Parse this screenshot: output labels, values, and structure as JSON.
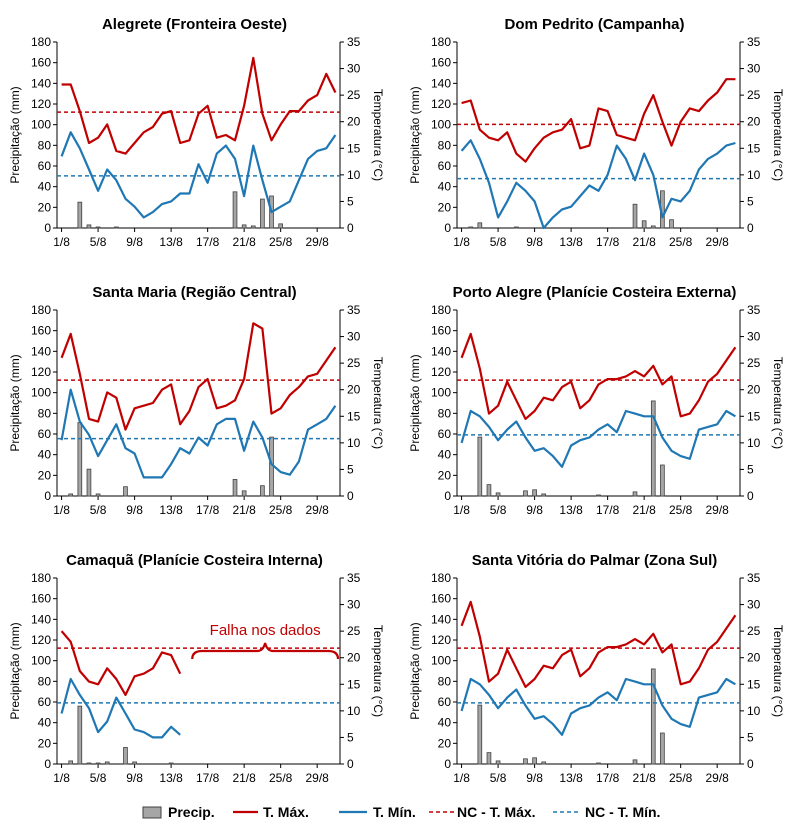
{
  "colors": {
    "precip_fill": "#a6a6a6",
    "precip_stroke": "#404040",
    "tmax": "#c00000",
    "tmin": "#1f77b4",
    "axis": "#000000"
  },
  "legend": {
    "precip": "Precip.",
    "tmax": "T. Máx.",
    "tmin": "T. Mín.",
    "nc_tmax": "NC - T. Máx.",
    "nc_tmin": "NC - T. Mín."
  },
  "chart_data": [
    {
      "type": "bar+line",
      "title": "Alegrete (Fronteira Oeste)",
      "ylabel": "Precipitação (mm)",
      "y2label": "Temperatura (°C)",
      "ylim": [
        0,
        180
      ],
      "y2lim": [
        0,
        35
      ],
      "yticks": [
        0,
        20,
        40,
        60,
        80,
        100,
        120,
        140,
        160,
        180
      ],
      "y2ticks": [
        0,
        5,
        10,
        15,
        20,
        25,
        30,
        35
      ],
      "x": [
        1,
        2,
        3,
        4,
        5,
        6,
        7,
        8,
        9,
        10,
        11,
        12,
        13,
        14,
        15,
        16,
        17,
        18,
        19,
        20,
        21,
        22,
        23,
        24,
        25,
        26,
        27,
        28,
        29,
        30,
        31
      ],
      "xticklabels": [
        "1/8",
        "5/8",
        "9/8",
        "13/8",
        "17/8",
        "21/8",
        "25/8",
        "29/8"
      ],
      "precip": [
        0,
        0,
        25,
        3,
        1,
        0,
        1,
        0,
        0,
        0,
        0,
        0,
        0,
        0,
        0,
        0,
        0,
        0,
        0,
        35,
        3,
        2,
        28,
        31,
        4,
        0,
        0,
        0,
        0,
        0,
        0
      ],
      "tmax": [
        27,
        27,
        22,
        16,
        17,
        19.5,
        14.5,
        14,
        16,
        18,
        19,
        21.5,
        22,
        16,
        16.5,
        21.5,
        23,
        17,
        17.5,
        16.5,
        23,
        32,
        21.5,
        16.5,
        19.5,
        22,
        22,
        24,
        25,
        29,
        25.5
      ],
      "tmin": [
        13.5,
        18,
        15,
        11,
        7,
        11,
        9,
        5.5,
        4,
        2,
        3,
        4.5,
        5,
        6.5,
        6.5,
        12,
        8.5,
        14,
        15.5,
        13,
        6,
        15.5,
        9,
        3,
        4,
        5,
        9,
        13,
        14.5,
        15,
        17.5
      ],
      "nc_tmax": 21.8,
      "nc_tmin": 9.8,
      "annotation": ""
    },
    {
      "type": "bar+line",
      "title": "Dom Pedrito (Campanha)",
      "ylabel": "Precipitação (mm)",
      "y2label": "Temperatura (°C)",
      "ylim": [
        0,
        180
      ],
      "y2lim": [
        0,
        35
      ],
      "yticks": [
        0,
        20,
        40,
        60,
        80,
        100,
        120,
        140,
        160,
        180
      ],
      "y2ticks": [
        0,
        5,
        10,
        15,
        20,
        25,
        30,
        35
      ],
      "x": [
        1,
        2,
        3,
        4,
        5,
        6,
        7,
        8,
        9,
        10,
        11,
        12,
        13,
        14,
        15,
        16,
        17,
        18,
        19,
        20,
        21,
        22,
        23,
        24,
        25,
        26,
        27,
        28,
        29,
        30,
        31
      ],
      "xticklabels": [
        "1/8",
        "5/8",
        "9/8",
        "13/8",
        "17/8",
        "21/8",
        "25/8",
        "29/8"
      ],
      "precip": [
        0,
        1,
        5,
        0,
        0,
        0,
        1,
        0,
        0,
        0,
        0,
        0,
        0,
        0,
        0,
        0,
        0,
        0,
        0,
        23,
        7,
        2,
        36,
        8,
        0,
        0,
        0,
        0,
        0,
        0,
        0
      ],
      "tmax": [
        23.5,
        24,
        18.5,
        17,
        16.5,
        18,
        14,
        12.5,
        15,
        17,
        18,
        18.5,
        20.5,
        15,
        15.5,
        22.5,
        22,
        17.5,
        17,
        16.5,
        21.5,
        25,
        20,
        15.5,
        20,
        22.5,
        22,
        24,
        25.5,
        28,
        28
      ],
      "tmin": [
        14.5,
        16.5,
        13,
        8.5,
        2,
        5,
        8.5,
        7,
        5,
        0,
        2,
        3.5,
        4,
        6,
        8,
        7,
        10,
        15.5,
        13,
        9,
        14,
        10,
        2,
        5.5,
        5,
        7,
        11,
        13,
        14,
        15.5,
        16
      ],
      "nc_tmax": 19.5,
      "nc_tmin": 9.3,
      "annotation": ""
    },
    {
      "type": "bar+line",
      "title": "Santa Maria (Região Central)",
      "ylabel": "Precipitação (mm)",
      "y2label": "Temperatura (°C)",
      "ylim": [
        0,
        180
      ],
      "y2lim": [
        0,
        35
      ],
      "yticks": [
        0,
        20,
        40,
        60,
        80,
        100,
        120,
        140,
        160,
        180
      ],
      "y2ticks": [
        0,
        5,
        10,
        15,
        20,
        25,
        30,
        35
      ],
      "x": [
        1,
        2,
        3,
        4,
        5,
        6,
        7,
        8,
        9,
        10,
        11,
        12,
        13,
        14,
        15,
        16,
        17,
        18,
        19,
        20,
        21,
        22,
        23,
        24,
        25,
        26,
        27,
        28,
        29,
        30,
        31
      ],
      "xticklabels": [
        "1/8",
        "5/8",
        "9/8",
        "13/8",
        "17/8",
        "21/8",
        "25/8",
        "29/8"
      ],
      "precip": [
        0,
        2,
        71,
        26,
        2,
        0,
        0,
        9,
        0,
        0,
        0,
        0,
        0,
        0,
        0,
        0,
        0,
        0,
        0,
        16,
        5,
        0,
        10,
        57,
        0,
        0,
        0,
        0,
        0,
        0,
        0
      ],
      "tmax": [
        26,
        30.5,
        23,
        14.5,
        14,
        19.5,
        18.5,
        12.5,
        16.5,
        17,
        17.5,
        20,
        21,
        13.5,
        16,
        20.5,
        22,
        16.5,
        17,
        18,
        22,
        32.5,
        31.5,
        15.5,
        16.5,
        19,
        20.5,
        22.5,
        23,
        25.5,
        28
      ],
      "tmin": [
        10.5,
        20,
        14,
        11.5,
        7.5,
        10.5,
        13.5,
        9,
        8,
        3.5,
        3.5,
        3.5,
        6,
        9,
        8,
        11,
        9.5,
        13.5,
        14.5,
        14.5,
        8.5,
        14,
        11,
        6,
        4.5,
        4,
        6.5,
        12.5,
        13.5,
        14.5,
        17
      ],
      "nc_tmax": 21.8,
      "nc_tmin": 10.8,
      "annotation": ""
    },
    {
      "type": "bar+line",
      "title": "Porto Alegre (Planície Costeira Externa)",
      "ylabel": "Precipitação (mm)",
      "y2label": "Temperatura (°C)",
      "ylim": [
        0,
        180
      ],
      "y2lim": [
        0,
        35
      ],
      "yticks": [
        0,
        20,
        40,
        60,
        80,
        100,
        120,
        140,
        160,
        180
      ],
      "y2ticks": [
        0,
        5,
        10,
        15,
        20,
        25,
        30,
        35
      ],
      "x": [
        1,
        2,
        3,
        4,
        5,
        6,
        7,
        8,
        9,
        10,
        11,
        12,
        13,
        14,
        15,
        16,
        17,
        18,
        19,
        20,
        21,
        22,
        23,
        24,
        25,
        26,
        27,
        28,
        29,
        30,
        31
      ],
      "xticklabels": [
        "1/8",
        "5/8",
        "9/8",
        "13/8",
        "17/8",
        "21/8",
        "25/8",
        "29/8"
      ],
      "precip": [
        0,
        0,
        57,
        11,
        3,
        0,
        0,
        5,
        6,
        2,
        0,
        0,
        0,
        0,
        0,
        1,
        0,
        0,
        0,
        4,
        0,
        92,
        30,
        0,
        0,
        0,
        0,
        0,
        0,
        0,
        0
      ],
      "tmax": [
        26,
        30.5,
        24,
        15.5,
        17,
        21.5,
        18,
        14.5,
        16,
        18.5,
        18,
        20.5,
        21.5,
        16.5,
        18,
        21,
        22,
        22,
        22.5,
        23.5,
        22.5,
        24.5,
        21,
        22.5,
        15,
        15.5,
        18,
        21.5,
        23,
        25.5,
        28
      ],
      "tmin": [
        10,
        16,
        15,
        13,
        10.5,
        12.5,
        14,
        11,
        8.5,
        9,
        7.5,
        5.5,
        9.5,
        10.5,
        11,
        12.5,
        13.5,
        12,
        16,
        15.5,
        15,
        15,
        11,
        8.5,
        7.5,
        7,
        12.5,
        13,
        13.5,
        16,
        15
      ],
      "nc_tmax": 21.8,
      "nc_tmin": 11.5,
      "annotation": ""
    },
    {
      "type": "bar+line",
      "title": "Camaquã (Planície Costeira Interna)",
      "ylabel": "Precipitação (mm)",
      "y2label": "Temperatura (°C)",
      "ylim": [
        0,
        180
      ],
      "y2lim": [
        0,
        35
      ],
      "yticks": [
        0,
        20,
        40,
        60,
        80,
        100,
        120,
        140,
        160,
        180
      ],
      "y2ticks": [
        0,
        5,
        10,
        15,
        20,
        25,
        30,
        35
      ],
      "x": [
        1,
        2,
        3,
        4,
        5,
        6,
        7,
        8,
        9,
        10,
        11,
        12,
        13,
        14,
        15,
        16,
        17,
        18,
        19,
        20,
        21,
        22,
        23,
        24,
        25,
        26,
        27,
        28,
        29,
        30,
        31
      ],
      "xticklabels": [
        "1/8",
        "5/8",
        "9/8",
        "13/8",
        "17/8",
        "21/8",
        "25/8",
        "29/8"
      ],
      "precip": [
        0,
        3,
        56,
        1,
        1,
        2,
        0,
        16,
        2,
        0,
        0,
        0,
        1,
        0,
        0,
        0,
        0,
        0,
        0,
        0,
        0,
        0,
        0,
        0,
        0,
        0,
        0,
        0,
        0,
        0,
        0
      ],
      "tmax": [
        25,
        23,
        17.5,
        15.5,
        15,
        18,
        16,
        13,
        16.5,
        17,
        18,
        21,
        20.5,
        17,
        null,
        null,
        null,
        null,
        null,
        null,
        null,
        null,
        null,
        null,
        null,
        null,
        null,
        null,
        null,
        null,
        null
      ],
      "tmin": [
        9.5,
        16,
        13,
        10.5,
        6,
        8,
        12.5,
        9.5,
        6.5,
        6,
        5,
        5,
        7,
        5.5,
        null,
        null,
        null,
        null,
        null,
        null,
        null,
        null,
        null,
        null,
        null,
        null,
        null,
        null,
        null,
        null,
        null
      ],
      "nc_tmax": 21.8,
      "nc_tmin": 11.5,
      "annotation": "Falha nos dados"
    },
    {
      "type": "bar+line",
      "title": "Santa Vitória do Palmar (Zona Sul)",
      "ylabel": "Precipitação (mm)",
      "y2label": "Temperatura (°C)",
      "ylim": [
        0,
        180
      ],
      "y2lim": [
        0,
        35
      ],
      "yticks": [
        0,
        20,
        40,
        60,
        80,
        100,
        120,
        140,
        160,
        180
      ],
      "y2ticks": [
        0,
        5,
        10,
        15,
        20,
        25,
        30,
        35
      ],
      "x": [
        1,
        2,
        3,
        4,
        5,
        6,
        7,
        8,
        9,
        10,
        11,
        12,
        13,
        14,
        15,
        16,
        17,
        18,
        19,
        20,
        21,
        22,
        23,
        24,
        25,
        26,
        27,
        28,
        29,
        30,
        31
      ],
      "xticklabels": [
        "1/8",
        "5/8",
        "9/8",
        "13/8",
        "17/8",
        "21/8",
        "25/8",
        "29/8"
      ],
      "precip": [
        0,
        0,
        57,
        11,
        3,
        0,
        0,
        5,
        6,
        2,
        0,
        0,
        0,
        0,
        0,
        1,
        0,
        0,
        0,
        4,
        0,
        92,
        30,
        0,
        0,
        0,
        0,
        0,
        0,
        0,
        0
      ],
      "tmax": [
        26,
        30.5,
        24,
        15.5,
        17,
        21.5,
        18,
        14.5,
        16,
        18.5,
        18,
        20.5,
        21.5,
        16.5,
        18,
        21,
        22,
        22,
        22.5,
        23.5,
        22.5,
        24.5,
        21,
        22.5,
        15,
        15.5,
        18,
        21.5,
        23,
        25.5,
        28
      ],
      "tmin": [
        10,
        16,
        15,
        13,
        10.5,
        12.5,
        14,
        11,
        8.5,
        9,
        7.5,
        5.5,
        9.5,
        10.5,
        11,
        12.5,
        13.5,
        12,
        16,
        15.5,
        15,
        15,
        11,
        8.5,
        7.5,
        7,
        12.5,
        13,
        13.5,
        16,
        15
      ],
      "nc_tmax": 21.8,
      "nc_tmin": 11.5,
      "annotation": ""
    }
  ]
}
